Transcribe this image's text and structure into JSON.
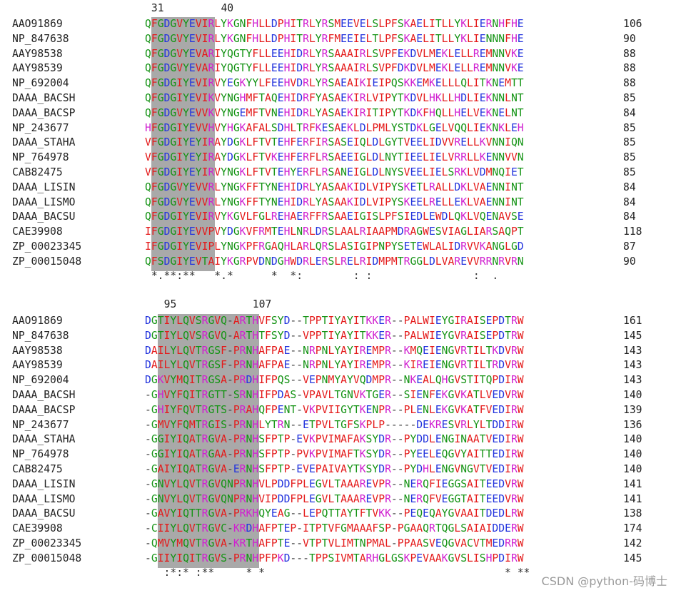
{
  "blocks": [
    {
      "positions": [
        {
          "label": "31"
        },
        {
          "label": "40"
        }
      ],
      "rows": [
        {
          "name": "AAO91869",
          "seq": "QFGDGVYEVIRLYKGNFHLLDPHITRLYRSMEEVELSLPFSKAELITLLYKLIERNHFHE",
          "num": "106"
        },
        {
          "name": "NP_847638",
          "seq": "QFGDGVYEVIRLYKGNFHLLDPHITRLYRFMEEIELTLPFSKAELITLLYKLIENNNFHE",
          "num": "90"
        },
        {
          "name": "AAY98538",
          "seq": "QFGDGVYEVARIYQGTYFLLEEHIDRLYRSAAAIRLSVPFEKDVLMEKLELLREMNNVKE",
          "num": "88"
        },
        {
          "name": "AAY98539",
          "seq": "QFGDGVYEVARIYQGTYFLLEEHIDRLYRSAAAIRLSVPFDKDVLMEKLELLREMNNVKE",
          "num": "88"
        },
        {
          "name": "NP_692004",
          "seq": "QFGDGIYEVIRVYEGKYYLFEEHVDRLYRSAEAIKIEIPQSKKEMKELLLQLITKNEMTT",
          "num": "88"
        },
        {
          "name": "DAAA_BACSH",
          "seq": "QFGDGIYEVIKVYNGHMFTAQEHIDRFYASAEKIRLVIPYTKDVLHKLLHDLIEKNNLNT",
          "num": "85"
        },
        {
          "name": "DAAA_BACSP",
          "seq": "QFGDGVYEVVKVYNGEMFTVNEHIDRLYASAEKIRITIPYTKDKFHQLLHELVEKNELNT",
          "num": "84"
        },
        {
          "name": "NP_243677",
          "seq": "HFGDGIYEVVHVYHGKAFALSDHLTRFKESAEKLDLPMLYSTDKLGELVQQLIEKNKLEH",
          "num": "85"
        },
        {
          "name": "DAAA_STAHA",
          "seq": "VFGDGIYEYIRAYDGKLFTVTEHFERFIRSASEIQLDLGYTVEELIDVVRELLKVNNIQN",
          "num": "85"
        },
        {
          "name": "NP_764978",
          "seq": "VFGDGIYEYIRAYDGKLFTVKEHFERFLRSAEEIGLDLNYTIEELIELVRRLLKENNVVN",
          "num": "85"
        },
        {
          "name": "CAB82475",
          "seq": "VFGDGIYEYIRVYNGKLFTVTEHYERFLRSANEIGLDLNYSVEELIELSRKLVDMNQIET",
          "num": "85"
        },
        {
          "name": "DAAA_LISIN",
          "seq": "QFGDGVYEVVRLYNGKFFTYNEHIDRLYASAAKIDLVIPYSKETLRALLDKLVAENNINT",
          "num": "84"
        },
        {
          "name": "DAAA_LISMO",
          "seq": "QFGDGVYEVVRLYNGKFFTYNEHIDRLYASAAKIDLVIPYSKEELRELLEKLVAENNINT",
          "num": "84"
        },
        {
          "name": "DAAA_BACSU",
          "seq": "QFGDGIYEVIRVYKGVLFGLREHAERFFRSAAEIGISLPFSIEDLEWDLQKLVQENAVSE",
          "num": "84"
        },
        {
          "name": "CAE39908",
          "seq": "IFGDGIYEVVPVYDGKVFRMTEHLNRLDRSLAALRIAAPMDRAGWESVIAGLIARSAQPT",
          "num": "118"
        },
        {
          "name": "ZP_00023345",
          "seq": "IFGDGIYEVIPLYNGKPFRGAQHLARLQRSLASIGIPNPYSETEWLALIDRVVKANGLGD",
          "num": "87"
        },
        {
          "name": "ZP_00015048",
          "seq": "QFSDGIYEVTAIYKGRPVDNDGHWDRLERSLRELRIDMPMTRGGLDLVAREVVRRNRVRN",
          "num": "90"
        }
      ],
      "conservation": " *.**:**   *.*      *  *:        : :                :  ."
    },
    {
      "positions": [
        {
          "label": "95"
        },
        {
          "label": "107"
        }
      ],
      "rows": [
        {
          "name": "AAO91869",
          "seq": "DGTIYLQVSRGVQ-ARTHVFSYD--TPPTIYAYITKKER--PALWIEYGIRAISEPDTRW",
          "num": "161"
        },
        {
          "name": "NP_847638",
          "seq": "DGTIYLQVSRGVQ-ARTHTFSYD--VPPTIYAYITKKER--PALWIEYGVRAISEPDTRW",
          "num": "145"
        },
        {
          "name": "AAY98538",
          "seq": "DAILYLQVTRGSF-PRNHAFPAE--NRPNLYAYIREMPR--KMQEIENGVRTILTKDVRW",
          "num": "143"
        },
        {
          "name": "AAY98539",
          "seq": "DAILYLQVTRGSF-PRNHAFPAE--NRPNLYAYIREMPR--KIREIENGVRTILTRDVRW",
          "num": "143"
        },
        {
          "name": "NP_692004",
          "seq": "DGKVYMQITRGSA-PRDHIFPQS--VEPNMYAYVQDMPR--NKEALQHGVSTITQPDIRW",
          "num": "143"
        },
        {
          "name": "DAAA_BACSH",
          "seq": "-GHVYFQITRGTT-SRNHIFPDAS-VPAVLTGNVKTGER--SIENFEKGVKATLVEDVRW",
          "num": "140"
        },
        {
          "name": "DAAA_BACSP",
          "seq": "-GHIYFQVTRGTS-PRAHQFPENT-VKPVIIGYTKENPR--PLENLEKGVKATFVEDIRW",
          "num": "139"
        },
        {
          "name": "NP_243677",
          "seq": "-GMVYFQMTRGIS-PRNHLYTRN--ETPVLTGFSKPLP-----DEKRESVRLYLTDDIRW",
          "num": "136"
        },
        {
          "name": "DAAA_STAHA",
          "seq": "-GGIYIQATRGVA-PRNHSFPTP-EVKPVIMAFAKSYDR--PYDDLENGINAATVEDIRW",
          "num": "140"
        },
        {
          "name": "NP_764978",
          "seq": "-GGIYIQATRGAA-PRNHSFPTP-PVKPVIMAFTKSYDR--PYEELEQGVYAITTEDIRW",
          "num": "140"
        },
        {
          "name": "CAB82475",
          "seq": "-GAIYIQATRGVA-ERNHSFPTP-EVEPAIVAYTKSYDR--PYDHLENGVNGVTVEDIRW",
          "num": "140"
        },
        {
          "name": "DAAA_LISIN",
          "seq": "-GNVYLQVTRGVQNPRNHVLPDDFPLEGVLTAAAREVPR--NERQFIEGGSAITEEDVRW",
          "num": "141"
        },
        {
          "name": "DAAA_LISMO",
          "seq": "-GNVYLQVTRGVQNPRNHVIPDDFPLEGVLTAAAREVPR--NERQFVEGGTAITEEDVRW",
          "num": "141"
        },
        {
          "name": "DAAA_BACSU",
          "seq": "-GAVYIQTTRGVA-PRKHQYEAG--LEPQTTAYTFTVKK--PEQEQAYGVAAITDEDLRW",
          "num": "138"
        },
        {
          "name": "CAE39908",
          "seq": "-CIIYLQVTRGVC-KRDHAFPTEP-ITPTVFGMAAAFSP-PGAAQRTQGLSAIAIDDERW",
          "num": "174"
        },
        {
          "name": "ZP_00023345",
          "seq": "-QMVYMQVTRGVA-KRTHAFPTE--VTPTVLIMTNPMAL-PPAASVEQGVACVTMEDRRW",
          "num": "142"
        },
        {
          "name": "ZP_00015048",
          "seq": "-GIIYIQITRGVS-PRNHPFPKD---TPPSIVMTARHGLGSKPEVAAKGVSLISHPDIRW",
          "num": "145"
        }
      ],
      "conservation": "   :*:* :**     * *                                      * **"
    }
  ],
  "watermark": "CSDN @python-码博士",
  "colors": {
    "highlight": "#a9a9a9",
    "red": "#e41a1a",
    "blue": "#2233dd",
    "magenta": "#d020d0",
    "green": "#149314"
  }
}
